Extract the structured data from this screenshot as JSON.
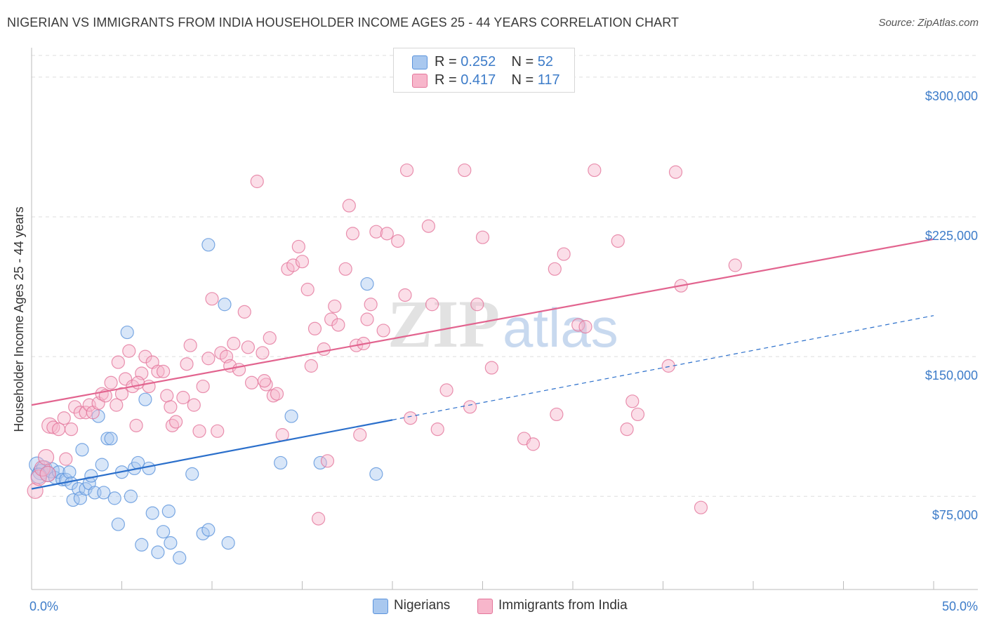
{
  "header": {
    "title": "NIGERIAN VS IMMIGRANTS FROM INDIA HOUSEHOLDER INCOME AGES 25 - 44 YEARS CORRELATION CHART",
    "source": "Source: ZipAtlas.com"
  },
  "legend": {
    "r_label": "R =",
    "n_label": "N =",
    "rows": [
      {
        "r": "0.252",
        "n": "52",
        "color": "#a9c8ef"
      },
      {
        "r": "0.417",
        "n": "117",
        "color": "#f7b6cb"
      }
    ]
  },
  "bottom_legend": [
    {
      "label": "Nigerians",
      "color": "#a9c8ef"
    },
    {
      "label": "Immigrants from India",
      "color": "#f7b6cb"
    }
  ],
  "watermark": {
    "zip": "ZIP",
    "atlas": "atlas"
  },
  "chart_data": {
    "type": "scatter",
    "ylabel": "Householder Income Ages 25 - 44 years",
    "xlim": [
      0,
      50
    ],
    "ylim": [
      25000,
      315000
    ],
    "x_tick_labels": [
      {
        "value": 0,
        "label": "0.0%"
      },
      {
        "value": 50,
        "label": "50.0%"
      }
    ],
    "y_ticks": [
      {
        "value": 75000,
        "label": "$75,000"
      },
      {
        "value": 150000,
        "label": "$150,000"
      },
      {
        "value": 225000,
        "label": "$225,000"
      },
      {
        "value": 300000,
        "label": "$300,000"
      }
    ],
    "grid": true,
    "series": [
      {
        "name": "Nigerians",
        "color": "#5b93dc",
        "fill": "#a9c8ef",
        "trend": {
          "x0": 0,
          "y0": 79000,
          "x1": 20,
          "y1": 116000,
          "dash_to_x": 50,
          "dash_to_y": 172000,
          "color": "#2b6fcb"
        },
        "points": [
          [
            0.3,
            92000
          ],
          [
            0.5,
            88000
          ],
          [
            0.7,
            90000
          ],
          [
            0.9,
            87000
          ],
          [
            1.1,
            89000
          ],
          [
            1.3,
            85000
          ],
          [
            1.5,
            88000
          ],
          [
            1.7,
            84000
          ],
          [
            1.9,
            84000
          ],
          [
            2.1,
            88000
          ],
          [
            2.2,
            82000
          ],
          [
            2.3,
            73000
          ],
          [
            2.6,
            79000
          ],
          [
            2.7,
            74000
          ],
          [
            2.8,
            100000
          ],
          [
            3.0,
            79000
          ],
          [
            3.2,
            82000
          ],
          [
            3.3,
            86000
          ],
          [
            3.5,
            77000
          ],
          [
            3.7,
            118000
          ],
          [
            3.9,
            92000
          ],
          [
            4.0,
            77000
          ],
          [
            4.2,
            106000
          ],
          [
            4.4,
            106000
          ],
          [
            4.6,
            74000
          ],
          [
            4.8,
            60000
          ],
          [
            5.0,
            88000
          ],
          [
            5.3,
            163000
          ],
          [
            5.5,
            75000
          ],
          [
            5.7,
            90000
          ],
          [
            5.9,
            93000
          ],
          [
            6.1,
            49000
          ],
          [
            6.3,
            127000
          ],
          [
            6.5,
            90000
          ],
          [
            6.7,
            66000
          ],
          [
            7.0,
            45000
          ],
          [
            7.3,
            56000
          ],
          [
            7.6,
            67000
          ],
          [
            7.7,
            50000
          ],
          [
            8.2,
            42000
          ],
          [
            8.9,
            87000
          ],
          [
            9.5,
            55000
          ],
          [
            9.8,
            57000
          ],
          [
            9.8,
            210000
          ],
          [
            10.7,
            178000
          ],
          [
            10.9,
            50000
          ],
          [
            13.8,
            93000
          ],
          [
            14.4,
            118000
          ],
          [
            16.0,
            93000
          ],
          [
            18.6,
            189000
          ],
          [
            19.1,
            87000
          ],
          [
            0.4,
            86000
          ]
        ]
      },
      {
        "name": "Immigrants from India",
        "color": "#e4769b",
        "fill": "#f7b6cb",
        "trend": {
          "x0": 0,
          "y0": 124000,
          "x1": 50,
          "y1": 213000,
          "color": "#e2648f"
        },
        "points": [
          [
            0.2,
            78000
          ],
          [
            0.4,
            85000
          ],
          [
            0.6,
            90000
          ],
          [
            0.8,
            96000
          ],
          [
            1.0,
            113000
          ],
          [
            1.2,
            112000
          ],
          [
            1.5,
            111000
          ],
          [
            1.8,
            117000
          ],
          [
            2.2,
            111000
          ],
          [
            2.4,
            123000
          ],
          [
            2.7,
            120000
          ],
          [
            3.0,
            120000
          ],
          [
            3.2,
            124000
          ],
          [
            3.4,
            120000
          ],
          [
            3.7,
            125000
          ],
          [
            3.9,
            130000
          ],
          [
            4.1,
            129000
          ],
          [
            4.4,
            136000
          ],
          [
            4.7,
            124000
          ],
          [
            4.8,
            147000
          ],
          [
            5.0,
            130000
          ],
          [
            5.2,
            138000
          ],
          [
            5.4,
            153000
          ],
          [
            5.6,
            134000
          ],
          [
            5.8,
            113000
          ],
          [
            6.1,
            141000
          ],
          [
            6.3,
            150000
          ],
          [
            6.5,
            134000
          ],
          [
            6.7,
            147000
          ],
          [
            7.0,
            142000
          ],
          [
            7.3,
            142000
          ],
          [
            7.5,
            129000
          ],
          [
            7.7,
            123000
          ],
          [
            7.8,
            113000
          ],
          [
            8.0,
            115000
          ],
          [
            8.4,
            128000
          ],
          [
            8.6,
            146000
          ],
          [
            8.8,
            156000
          ],
          [
            9.0,
            124000
          ],
          [
            9.3,
            110000
          ],
          [
            9.5,
            134000
          ],
          [
            9.8,
            149000
          ],
          [
            10.0,
            181000
          ],
          [
            10.3,
            110000
          ],
          [
            10.5,
            152000
          ],
          [
            10.8,
            150000
          ],
          [
            11.0,
            145000
          ],
          [
            11.2,
            157000
          ],
          [
            11.5,
            143000
          ],
          [
            11.8,
            174000
          ],
          [
            12.0,
            155000
          ],
          [
            12.2,
            136000
          ],
          [
            12.5,
            244000
          ],
          [
            12.8,
            152000
          ],
          [
            13.0,
            135000
          ],
          [
            13.2,
            160000
          ],
          [
            13.4,
            129000
          ],
          [
            13.6,
            130000
          ],
          [
            13.9,
            108000
          ],
          [
            14.2,
            197000
          ],
          [
            14.5,
            199000
          ],
          [
            14.8,
            209000
          ],
          [
            15.0,
            201000
          ],
          [
            15.3,
            186000
          ],
          [
            15.5,
            145000
          ],
          [
            15.7,
            165000
          ],
          [
            15.9,
            63000
          ],
          [
            16.2,
            154000
          ],
          [
            16.4,
            94000
          ],
          [
            16.6,
            170000
          ],
          [
            16.8,
            177000
          ],
          [
            17.0,
            167000
          ],
          [
            17.4,
            197000
          ],
          [
            17.6,
            231000
          ],
          [
            17.8,
            216000
          ],
          [
            18.0,
            156000
          ],
          [
            18.2,
            108000
          ],
          [
            18.4,
            157000
          ],
          [
            18.6,
            170000
          ],
          [
            18.8,
            178000
          ],
          [
            19.1,
            217000
          ],
          [
            19.5,
            164000
          ],
          [
            19.7,
            216000
          ],
          [
            20.3,
            212000
          ],
          [
            20.7,
            183000
          ],
          [
            20.8,
            250000
          ],
          [
            21.0,
            117000
          ],
          [
            22.0,
            220000
          ],
          [
            22.2,
            178000
          ],
          [
            22.5,
            111000
          ],
          [
            23.0,
            132000
          ],
          [
            24.0,
            250000
          ],
          [
            24.3,
            123000
          ],
          [
            24.7,
            178000
          ],
          [
            25.0,
            214000
          ],
          [
            25.5,
            144000
          ],
          [
            27.3,
            106000
          ],
          [
            27.8,
            103000
          ],
          [
            29.0,
            197000
          ],
          [
            29.1,
            119000
          ],
          [
            29.5,
            205000
          ],
          [
            30.3,
            167000
          ],
          [
            30.7,
            166000
          ],
          [
            31.2,
            250000
          ],
          [
            32.5,
            212000
          ],
          [
            33.0,
            111000
          ],
          [
            33.3,
            126000
          ],
          [
            33.6,
            119000
          ],
          [
            35.3,
            145000
          ],
          [
            35.7,
            249000
          ],
          [
            36.0,
            188000
          ],
          [
            37.1,
            69000
          ],
          [
            39.0,
            199000
          ],
          [
            1.9,
            95000
          ],
          [
            0.9,
            87000
          ],
          [
            5.9,
            136000
          ],
          [
            12.9,
            137000
          ]
        ]
      }
    ]
  }
}
